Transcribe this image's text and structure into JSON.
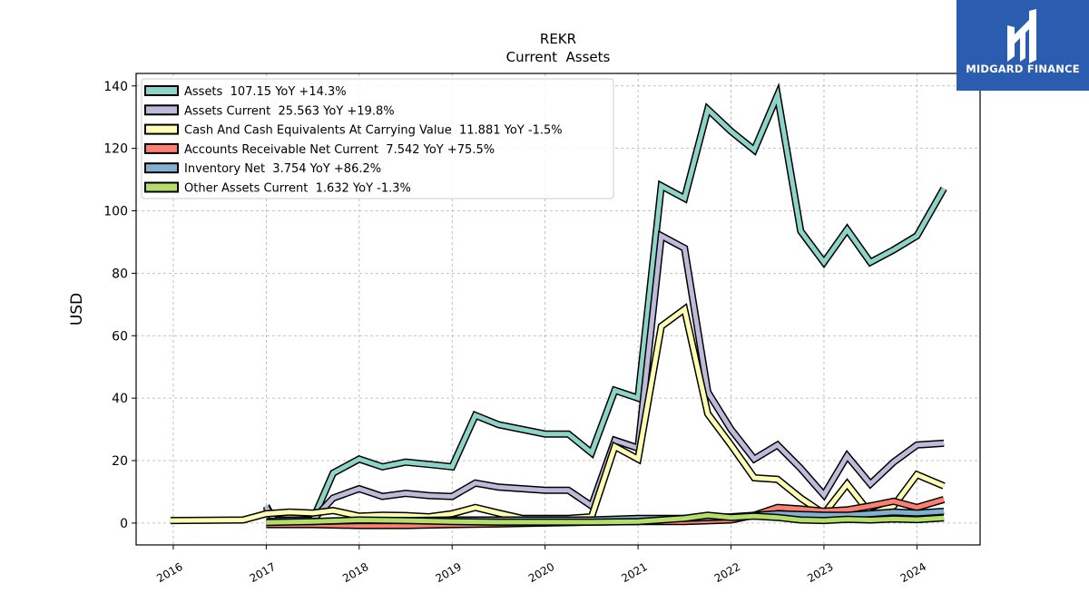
{
  "chart_data": {
    "type": "line",
    "title": "REKR",
    "subtitle": "Current  Assets",
    "ylabel": "USD",
    "xlabel": "",
    "xlim": [
      2015.6,
      2024.68
    ],
    "ylim": [
      -7,
      144
    ],
    "yticks": [
      0,
      20,
      40,
      60,
      80,
      100,
      120,
      140
    ],
    "xticks": [
      2016,
      2017,
      2018,
      2019,
      2020,
      2021,
      2022,
      2023,
      2024
    ],
    "grid": true,
    "legend_position": "top-left",
    "series": [
      {
        "name": "Assets",
        "legend": "Assets  107.15 YoY +14.3%",
        "color": "#8dd3c7",
        "points": [
          [
            2017.0,
            5.5
          ],
          [
            2017.08,
            1
          ],
          [
            2017.5,
            1
          ],
          [
            2017.72,
            16
          ],
          [
            2018.0,
            20.5
          ],
          [
            2018.25,
            18
          ],
          [
            2018.5,
            19.5
          ],
          [
            2018.75,
            18.8
          ],
          [
            2019.0,
            18
          ],
          [
            2019.25,
            34.5
          ],
          [
            2019.5,
            31.5
          ],
          [
            2019.75,
            30
          ],
          [
            2020.0,
            28.5
          ],
          [
            2020.25,
            28.5
          ],
          [
            2020.5,
            22.5
          ],
          [
            2020.75,
            42.5
          ],
          [
            2021.0,
            40
          ],
          [
            2021.25,
            108
          ],
          [
            2021.5,
            104
          ],
          [
            2021.75,
            132.5
          ],
          [
            2022.0,
            125.5
          ],
          [
            2022.25,
            119.5
          ],
          [
            2022.5,
            137
          ],
          [
            2022.75,
            93.5
          ],
          [
            2023.0,
            83.5
          ],
          [
            2023.25,
            94
          ],
          [
            2023.5,
            83.5
          ],
          [
            2023.75,
            87.5
          ],
          [
            2024.0,
            92
          ],
          [
            2024.29,
            107.15
          ]
        ]
      },
      {
        "name": "Assets Current",
        "legend": "Assets Current  25.563 YoY +19.8%",
        "color": "#bebada",
        "points": [
          [
            2017.0,
            5
          ],
          [
            2017.08,
            1
          ],
          [
            2017.5,
            1
          ],
          [
            2017.72,
            8
          ],
          [
            2018.0,
            11
          ],
          [
            2018.25,
            8.5
          ],
          [
            2018.5,
            9.5
          ],
          [
            2018.75,
            8.8
          ],
          [
            2019.0,
            8.5
          ],
          [
            2019.25,
            12.8
          ],
          [
            2019.5,
            11.5
          ],
          [
            2019.75,
            11
          ],
          [
            2020.0,
            10.5
          ],
          [
            2020.25,
            10.5
          ],
          [
            2020.5,
            5.5
          ],
          [
            2020.75,
            26.5
          ],
          [
            2021.0,
            24
          ],
          [
            2021.25,
            92
          ],
          [
            2021.5,
            88
          ],
          [
            2021.75,
            42
          ],
          [
            2022.0,
            30
          ],
          [
            2022.25,
            20.5
          ],
          [
            2022.5,
            25
          ],
          [
            2022.75,
            17.5
          ],
          [
            2023.0,
            9
          ],
          [
            2023.25,
            21.5
          ],
          [
            2023.5,
            12.5
          ],
          [
            2023.75,
            19.5
          ],
          [
            2024.0,
            25
          ],
          [
            2024.29,
            25.563
          ]
        ]
      },
      {
        "name": "Cash And Cash Equivalents At Carrying Value",
        "legend": "Cash And Cash Equivalents At Carrying Value  11.881 YoY -1.5%",
        "color": "#ffffb3",
        "points": [
          [
            2015.97,
            0.8
          ],
          [
            2016.75,
            1
          ],
          [
            2017.0,
            3
          ],
          [
            2017.25,
            3.5
          ],
          [
            2017.5,
            3.2
          ],
          [
            2017.72,
            4
          ],
          [
            2018.0,
            2.2
          ],
          [
            2018.25,
            2.5
          ],
          [
            2018.5,
            2.4
          ],
          [
            2018.75,
            2
          ],
          [
            2019.0,
            3
          ],
          [
            2019.25,
            5
          ],
          [
            2019.5,
            3.2
          ],
          [
            2019.75,
            1.5
          ],
          [
            2020.0,
            1.5
          ],
          [
            2020.25,
            1.5
          ],
          [
            2020.5,
            2
          ],
          [
            2020.75,
            24.5
          ],
          [
            2021.0,
            20.5
          ],
          [
            2021.25,
            63
          ],
          [
            2021.5,
            68.5
          ],
          [
            2021.75,
            35
          ],
          [
            2022.0,
            25
          ],
          [
            2022.25,
            14.5
          ],
          [
            2022.5,
            14
          ],
          [
            2022.75,
            8
          ],
          [
            2023.0,
            3
          ],
          [
            2023.25,
            12.5
          ],
          [
            2023.5,
            3
          ],
          [
            2023.75,
            5.5
          ],
          [
            2024.0,
            15.5
          ],
          [
            2024.29,
            11.881
          ]
        ]
      },
      {
        "name": "Accounts Receivable Net Current",
        "legend": "Accounts Receivable Net Current  7.542 YoY +75.5%",
        "color": "#fb8072",
        "points": [
          [
            2017.0,
            -0.5
          ],
          [
            2017.5,
            -0.5
          ],
          [
            2018.0,
            -0.8
          ],
          [
            2018.5,
            -0.8
          ],
          [
            2019.0,
            -0.5
          ],
          [
            2019.5,
            -0.3
          ],
          [
            2020.0,
            0
          ],
          [
            2020.5,
            0.3
          ],
          [
            2021.0,
            0.5
          ],
          [
            2021.5,
            0.5
          ],
          [
            2022.0,
            1
          ],
          [
            2022.25,
            2.5
          ],
          [
            2022.5,
            5
          ],
          [
            2022.75,
            4.5
          ],
          [
            2023.0,
            3.8
          ],
          [
            2023.25,
            4.2
          ],
          [
            2023.5,
            5.5
          ],
          [
            2023.75,
            7
          ],
          [
            2024.0,
            5
          ],
          [
            2024.29,
            7.542
          ]
        ]
      },
      {
        "name": "Inventory Net",
        "legend": "Inventory Net  3.754 YoY +86.2%",
        "color": "#80b1d3",
        "points": [
          [
            2017.0,
            0.5
          ],
          [
            2017.5,
            0.5
          ],
          [
            2018.0,
            0.8
          ],
          [
            2018.5,
            0.8
          ],
          [
            2019.0,
            1
          ],
          [
            2019.5,
            1
          ],
          [
            2020.0,
            1
          ],
          [
            2020.5,
            1
          ],
          [
            2021.0,
            1.5
          ],
          [
            2021.5,
            1.5
          ],
          [
            2022.0,
            2
          ],
          [
            2022.5,
            3
          ],
          [
            2023.0,
            2.5
          ],
          [
            2023.25,
            2.5
          ],
          [
            2023.5,
            3
          ],
          [
            2023.75,
            3.5
          ],
          [
            2024.0,
            3.2
          ],
          [
            2024.29,
            3.754
          ]
        ]
      },
      {
        "name": "Other Assets Current",
        "legend": "Other Assets Current  1.632 YoY -1.3%",
        "color": "#b3de69",
        "points": [
          [
            2017.0,
            0.2
          ],
          [
            2017.5,
            0.5
          ],
          [
            2018.0,
            1
          ],
          [
            2018.5,
            0.8
          ],
          [
            2019.0,
            0.5
          ],
          [
            2019.5,
            0.3
          ],
          [
            2020.0,
            0.3
          ],
          [
            2020.5,
            0.3
          ],
          [
            2021.0,
            0.5
          ],
          [
            2021.5,
            1.5
          ],
          [
            2021.75,
            2.5
          ],
          [
            2022.0,
            1.8
          ],
          [
            2022.25,
            2.2
          ],
          [
            2022.5,
            1.8
          ],
          [
            2022.75,
            1
          ],
          [
            2023.0,
            0.8
          ],
          [
            2023.25,
            1.2
          ],
          [
            2023.5,
            1
          ],
          [
            2023.75,
            1.3
          ],
          [
            2024.0,
            1.1
          ],
          [
            2024.29,
            1.632
          ]
        ]
      }
    ]
  },
  "logo": {
    "text": "MIDGARD FINANCE",
    "background": "#2a5cb0"
  }
}
